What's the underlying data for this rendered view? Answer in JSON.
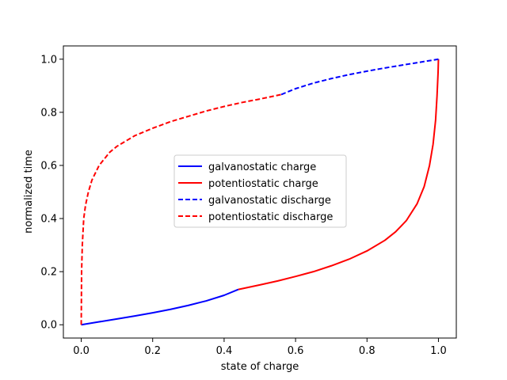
{
  "chart_data": {
    "type": "line",
    "title": "",
    "xlabel": "state of charge",
    "ylabel": "normalized time",
    "xlim": [
      -0.05,
      1.05
    ],
    "ylim": [
      -0.05,
      1.05
    ],
    "xticks": [
      0.0,
      0.2,
      0.4,
      0.6,
      0.8,
      1.0
    ],
    "yticks": [
      0.0,
      0.2,
      0.4,
      0.6,
      0.8,
      1.0
    ],
    "xtick_labels": [
      "0.0",
      "0.2",
      "0.4",
      "0.6",
      "0.8",
      "1.0"
    ],
    "ytick_labels": [
      "0.0",
      "0.2",
      "0.4",
      "0.6",
      "0.8",
      "1.0"
    ],
    "grid": false,
    "legend_position": "center",
    "series": [
      {
        "name": "galvanostatic charge",
        "color": "#0000ff",
        "style": "solid",
        "points": [
          [
            0.0,
            0.0
          ],
          [
            0.05,
            0.011
          ],
          [
            0.1,
            0.022
          ],
          [
            0.15,
            0.033
          ],
          [
            0.2,
            0.045
          ],
          [
            0.25,
            0.058
          ],
          [
            0.3,
            0.073
          ],
          [
            0.35,
            0.09
          ],
          [
            0.4,
            0.111
          ],
          [
            0.44,
            0.133
          ]
        ]
      },
      {
        "name": "potentiostatic charge",
        "color": "#ff0000",
        "style": "solid",
        "points": [
          [
            0.44,
            0.133
          ],
          [
            0.5,
            0.15
          ],
          [
            0.55,
            0.165
          ],
          [
            0.6,
            0.182
          ],
          [
            0.65,
            0.2
          ],
          [
            0.7,
            0.222
          ],
          [
            0.75,
            0.247
          ],
          [
            0.8,
            0.278
          ],
          [
            0.85,
            0.318
          ],
          [
            0.88,
            0.35
          ],
          [
            0.91,
            0.392
          ],
          [
            0.94,
            0.455
          ],
          [
            0.96,
            0.52
          ],
          [
            0.975,
            0.6
          ],
          [
            0.985,
            0.68
          ],
          [
            0.992,
            0.77
          ],
          [
            0.996,
            0.86
          ],
          [
            0.999,
            0.95
          ],
          [
            1.0,
            1.0
          ]
        ]
      },
      {
        "name": "galvanostatic discharge",
        "color": "#0000ff",
        "style": "dashed",
        "points": [
          [
            0.56,
            0.867
          ],
          [
            0.6,
            0.889
          ],
          [
            0.65,
            0.91
          ],
          [
            0.7,
            0.927
          ],
          [
            0.75,
            0.942
          ],
          [
            0.8,
            0.955
          ],
          [
            0.85,
            0.967
          ],
          [
            0.9,
            0.978
          ],
          [
            0.95,
            0.989
          ],
          [
            1.0,
            1.0
          ]
        ]
      },
      {
        "name": "potentiostatic discharge",
        "color": "#ff0000",
        "style": "dashed",
        "points": [
          [
            0.0,
            0.0
          ],
          [
            0.0005,
            0.1
          ],
          [
            0.001,
            0.2
          ],
          [
            0.003,
            0.3
          ],
          [
            0.007,
            0.4
          ],
          [
            0.012,
            0.45
          ],
          [
            0.02,
            0.5
          ],
          [
            0.03,
            0.545
          ],
          [
            0.05,
            0.6
          ],
          [
            0.08,
            0.65
          ],
          [
            0.1,
            0.672
          ],
          [
            0.15,
            0.712
          ],
          [
            0.2,
            0.74
          ],
          [
            0.25,
            0.765
          ],
          [
            0.3,
            0.785
          ],
          [
            0.35,
            0.805
          ],
          [
            0.4,
            0.822
          ],
          [
            0.45,
            0.837
          ],
          [
            0.5,
            0.85
          ],
          [
            0.56,
            0.867
          ]
        ]
      }
    ]
  }
}
